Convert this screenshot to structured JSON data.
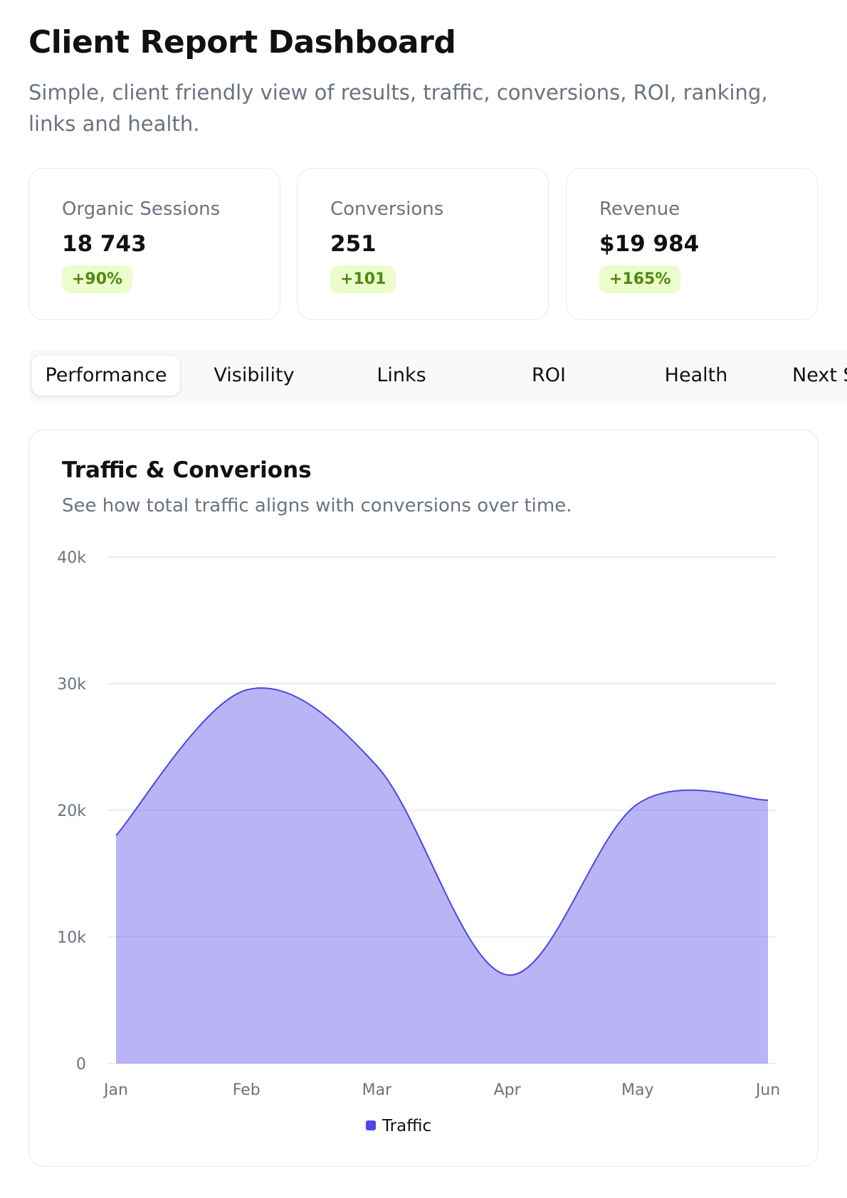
{
  "header": {
    "title": "Client Report Dashboard",
    "subtitle": "Simple, client friendly view of results, traffic, conversions, ROI, ranking, links and health."
  },
  "cards": [
    {
      "label": "Organic Sessions",
      "value": "18 743",
      "change": "+90%"
    },
    {
      "label": "Conversions",
      "value": "251",
      "change": "+101"
    },
    {
      "label": "Revenue",
      "value": "$19 984",
      "change": "+165%"
    }
  ],
  "tabs": [
    "Performance",
    "Visibility",
    "Links",
    "ROI",
    "Health",
    "Next S"
  ],
  "chart_data": {
    "type": "area",
    "title": "Traffic & Converions",
    "subtitle": "See how total traffic aligns with conversions over time.",
    "categories": [
      "Jan",
      "Feb",
      "Mar",
      "Apr",
      "May",
      "Jun"
    ],
    "series": [
      {
        "name": "Traffic",
        "color": "#4f46e5",
        "values": [
          18000,
          29500,
          23500,
          7000,
          20500,
          20800
        ]
      }
    ],
    "ylim": [
      0,
      40000
    ],
    "yticks": [
      0,
      {
        "value": 10000,
        "label": "10k"
      },
      {
        "value": 20000,
        "label": "20k"
      },
      {
        "value": 30000,
        "label": "30k"
      },
      {
        "value": 40000,
        "label": "40k"
      }
    ],
    "grid": true
  }
}
